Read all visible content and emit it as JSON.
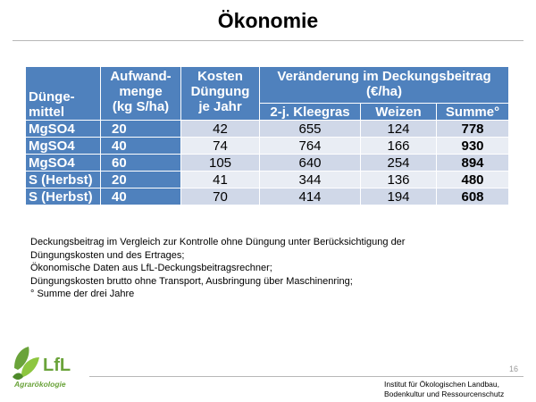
{
  "title": "Ökonomie",
  "table": {
    "header": {
      "col1": [
        "Dünge-",
        "mittel"
      ],
      "col2": [
        "Aufwand-",
        "menge",
        "(kg S/ha)"
      ],
      "col3": [
        "Kosten",
        "Düngung",
        "je Jahr"
      ],
      "group": [
        "Veränderung im Deckungsbeitrag",
        "(€/ha)"
      ],
      "sub": [
        "2-j. Kleegras",
        "Weizen",
        "Summe°"
      ]
    },
    "rows": [
      {
        "fert": "MgSO4",
        "amount": "20",
        "cost": "42",
        "klee": "655",
        "weizen": "124",
        "summe": "778"
      },
      {
        "fert": "MgSO4",
        "amount": "40",
        "cost": "74",
        "klee": "764",
        "weizen": "166",
        "summe": "930"
      },
      {
        "fert": "MgSO4",
        "amount": "60",
        "cost": "105",
        "klee": "640",
        "weizen": "254",
        "summe": "894"
      },
      {
        "fert": "S (Herbst)",
        "amount": "20",
        "cost": "41",
        "klee": "344",
        "weizen": "136",
        "summe": "480"
      },
      {
        "fert": "S (Herbst)",
        "amount": "40",
        "cost": "70",
        "klee": "414",
        "weizen": "194",
        "summe": "608"
      }
    ]
  },
  "notes": [
    "Deckungsbeitrag im Vergleich zur Kontrolle ohne Düngung unter Berücksichtigung der",
    "Düngungskosten und des Ertrages;",
    "Ökonomische Daten aus LfL-Deckungsbeitragsrechner;",
    "Düngungskosten brutto ohne Transport, Ausbringung über Maschinenring;",
    "° Summe der drei Jahre"
  ],
  "page_number": "16",
  "logo": {
    "name": "LfL",
    "subtitle": "Agrarökologie"
  },
  "institute": [
    "Institut für Ökologischen Landbau,",
    "Bodenkultur und Ressourcenschutz"
  ],
  "colors": {
    "header": "#4f81bd",
    "row_odd": "#d0d8e8",
    "row_even": "#e9edf4"
  }
}
